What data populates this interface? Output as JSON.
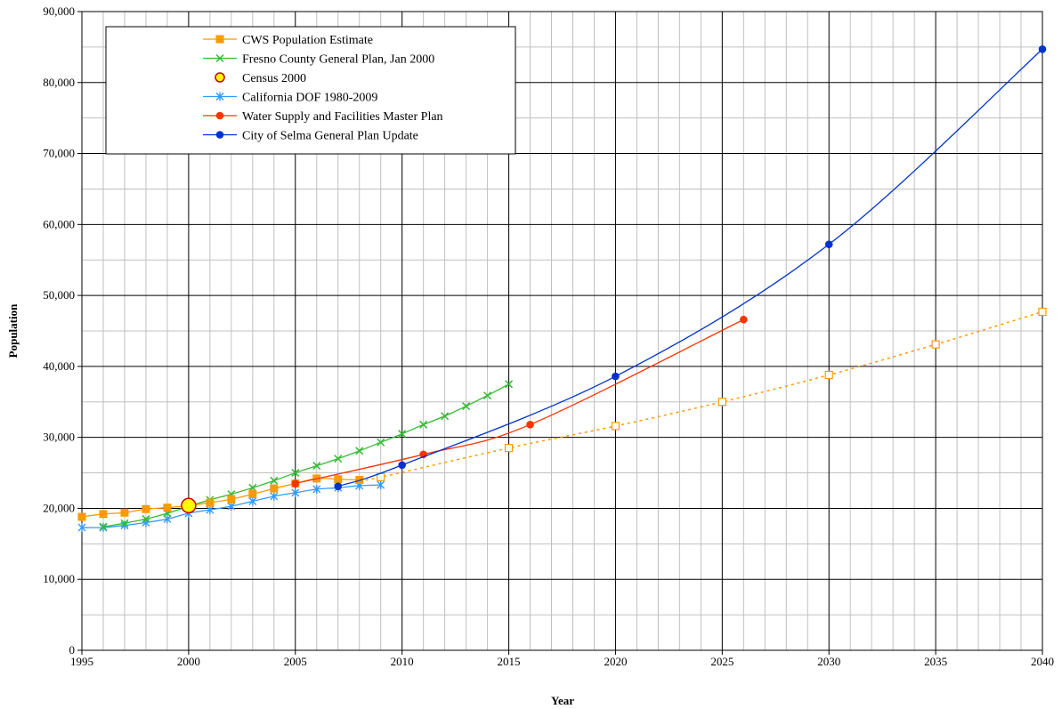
{
  "chart_data": {
    "type": "line",
    "title": "",
    "xlabel": "Year",
    "ylabel": "Population",
    "xlim": [
      1995,
      2040
    ],
    "ylim": [
      0,
      90000
    ],
    "x_ticks": [
      "1995",
      "2000",
      "2005",
      "2010",
      "2015",
      "2020",
      "2025",
      "2030",
      "2035",
      "2040"
    ],
    "x_tick_values": [
      1995,
      2000,
      2005,
      2010,
      2015,
      2020,
      2025,
      2030,
      2035,
      2040
    ],
    "y_ticks": [
      "0",
      "10,000",
      "20,000",
      "30,000",
      "40,000",
      "50,000",
      "60,000",
      "70,000",
      "80,000",
      "90,000"
    ],
    "y_tick_values": [
      0,
      10000,
      20000,
      30000,
      40000,
      50000,
      60000,
      70000,
      80000,
      90000
    ],
    "grid": true,
    "minor_grid": true,
    "legend_position": "top-left",
    "series": [
      {
        "name": "CWS Population Estimate",
        "color": "#ff9900",
        "marker": "square",
        "points": [
          [
            1995,
            18800
          ],
          [
            1996,
            19200
          ],
          [
            1997,
            19400
          ],
          [
            1998,
            19900
          ],
          [
            1999,
            20100
          ],
          [
            2000,
            20400
          ],
          [
            2001,
            20800
          ],
          [
            2002,
            21300
          ],
          [
            2003,
            22000
          ],
          [
            2004,
            22800
          ],
          [
            2005,
            23500
          ],
          [
            2006,
            24200
          ],
          [
            2007,
            24100
          ],
          [
            2008,
            24000
          ]
        ],
        "projection": {
          "dashed": true,
          "marker": "hollow-square",
          "points": [
            [
              2008,
              24000
            ],
            [
              2009,
              24400
            ],
            [
              2015,
              28500
            ],
            [
              2020,
              31600
            ],
            [
              2025,
              35000
            ],
            [
              2030,
              38800
            ],
            [
              2035,
              43100
            ],
            [
              2040,
              47700
            ]
          ]
        }
      },
      {
        "name": "Fresno County General Plan, Jan 2000",
        "color": "#33bb33",
        "marker": "x",
        "points": [
          [
            1996,
            17400
          ],
          [
            1997,
            17900
          ],
          [
            1998,
            18500
          ],
          [
            1999,
            19300
          ],
          [
            2000,
            20300
          ],
          [
            2001,
            21200
          ],
          [
            2002,
            22000
          ],
          [
            2003,
            22900
          ],
          [
            2004,
            23900
          ],
          [
            2005,
            25000
          ],
          [
            2006,
            26000
          ],
          [
            2007,
            27000
          ],
          [
            2008,
            28100
          ],
          [
            2009,
            29300
          ],
          [
            2010,
            30500
          ],
          [
            2011,
            31800
          ],
          [
            2012,
            33000
          ],
          [
            2013,
            34400
          ],
          [
            2014,
            35900
          ],
          [
            2015,
            37500
          ]
        ]
      },
      {
        "name": "Census 2000",
        "color": "#cc0000",
        "fill": "#ffff00",
        "marker": "circle",
        "points": [
          [
            2000,
            20400
          ]
        ]
      },
      {
        "name": "California DOF 1980-2009",
        "color": "#3399ff",
        "marker": "asterisk",
        "points": [
          [
            1995,
            17300
          ],
          [
            1996,
            17300
          ],
          [
            1997,
            17600
          ],
          [
            1998,
            18000
          ],
          [
            1999,
            18500
          ],
          [
            2000,
            19300
          ],
          [
            2001,
            19800
          ],
          [
            2002,
            20300
          ],
          [
            2003,
            21000
          ],
          [
            2004,
            21700
          ],
          [
            2005,
            22200
          ],
          [
            2006,
            22700
          ],
          [
            2007,
            22900
          ],
          [
            2008,
            23200
          ],
          [
            2009,
            23300
          ]
        ]
      },
      {
        "name": "Water Supply and Facilities Master Plan",
        "color": "#ff3300",
        "marker": "dot",
        "points": [
          [
            2005,
            23500
          ],
          [
            2011,
            27600
          ],
          [
            2016,
            31800
          ],
          [
            2026,
            46600
          ]
        ]
      },
      {
        "name": "City of Selma General Plan Update",
        "color": "#0033cc",
        "marker": "dot",
        "points": [
          [
            2007,
            23100
          ],
          [
            2010,
            26100
          ],
          [
            2020,
            38600
          ],
          [
            2030,
            57200
          ],
          [
            2040,
            84700
          ]
        ]
      }
    ]
  }
}
